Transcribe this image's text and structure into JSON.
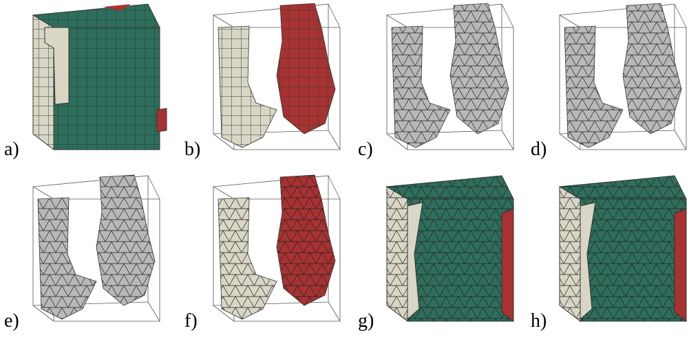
{
  "panels": [
    {
      "label": "a)"
    },
    {
      "label": "b)"
    },
    {
      "label": "c)"
    },
    {
      "label": "d)"
    },
    {
      "label": "e)"
    },
    {
      "label": "f)"
    },
    {
      "label": "g)"
    },
    {
      "label": "h)"
    }
  ]
}
